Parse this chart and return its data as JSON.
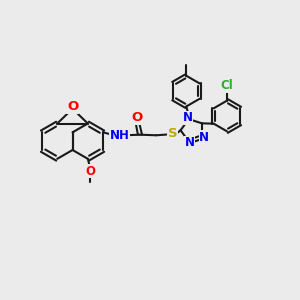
{
  "bg_color": "#ebebeb",
  "bond_color": "#1a1a1a",
  "bond_width": 1.5,
  "atom_colors": {
    "O": "#ff0000",
    "N": "#0000ee",
    "S": "#bbaa00",
    "Cl": "#33aa33",
    "C": "#1a1a1a"
  },
  "font_size": 8.5
}
